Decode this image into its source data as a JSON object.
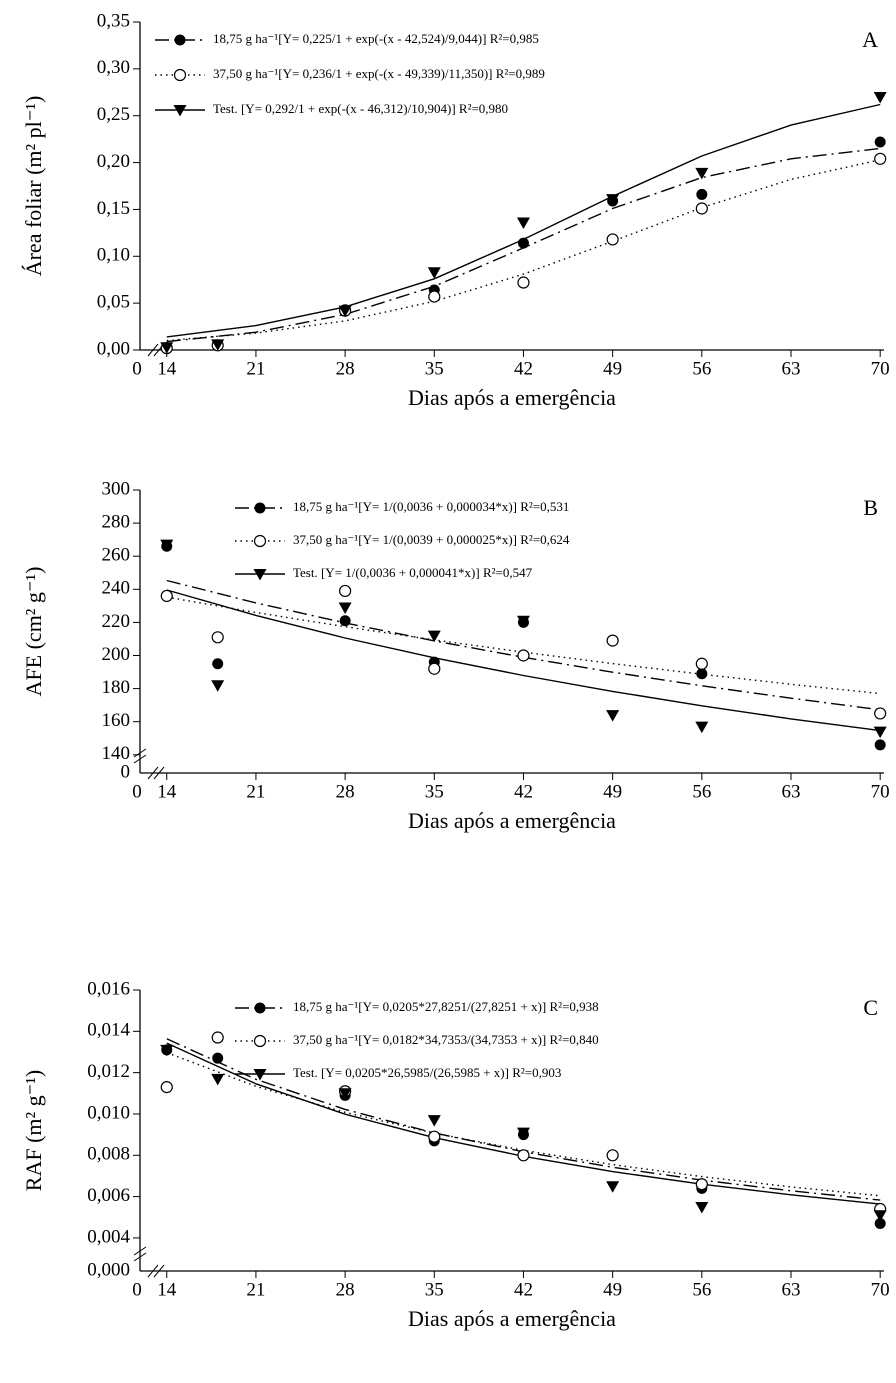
{
  "chart_data": [
    {
      "type": "scatter",
      "panel_label": "A",
      "xlabel": "Dias após a emergência",
      "ylabel": "Área foliar (m² pl⁻¹)",
      "x_break_label": "0",
      "legend": "upper left",
      "x": [
        14,
        18,
        28,
        35,
        42,
        49,
        56,
        70
      ],
      "fit_x": [
        14,
        21,
        28,
        35,
        42,
        49,
        56,
        63,
        70
      ],
      "xlim": [
        11.9,
        70.3
      ],
      "xticks": [
        14,
        21,
        28,
        35,
        42,
        49,
        56,
        63,
        70
      ],
      "ylim": [
        0,
        0.35
      ],
      "yticks": [
        {
          "value": 0,
          "label": "0,00"
        },
        {
          "value": 0.05,
          "label": "0,05"
        },
        {
          "value": 0.1,
          "label": "0,10"
        },
        {
          "value": 0.15,
          "label": "0,15"
        },
        {
          "value": 0.2,
          "label": "0,20"
        },
        {
          "value": 0.25,
          "label": "0,25"
        },
        {
          "value": 0.3,
          "label": "0,30"
        },
        {
          "value": 0.35,
          "label": "0,35"
        }
      ],
      "series": [
        {
          "name": "18,75 g ha⁻¹[Y= 0,225/1 + exp(-(x - 42,524)/9,044)] R²=0,985",
          "color": "#000000",
          "marker": "filled-circle",
          "dash": "14 5 2 5",
          "values": [
            0.002,
            0.005,
            0.043,
            0.064,
            0.114,
            0.159,
            0.166,
            0.222
          ],
          "fit": [
            0.009,
            0.019,
            0.038,
            0.068,
            0.109,
            0.151,
            0.184,
            0.204,
            0.215
          ]
        },
        {
          "name": "37,50 g ha⁻¹[Y= 0,236/1 + exp(-(x - 49,339)/11,350)] R²=0,989",
          "color": "#000000",
          "marker": "open-circle",
          "dash": "1.5 4",
          "values": [
            0.002,
            0.005,
            0.042,
            0.057,
            0.072,
            0.118,
            0.151,
            0.204
          ],
          "fit": [
            0.01,
            0.018,
            0.031,
            0.052,
            0.081,
            0.116,
            0.152,
            0.182,
            0.203
          ]
        },
        {
          "name": "Test. [Y= 0,292/1 + exp(-(x - 46,312)/10,904)] R²=0,980",
          "color": "#000000",
          "marker": "down-triangle",
          "dash": "none",
          "values": [
            0.003,
            0.006,
            0.042,
            0.083,
            0.136,
            0.161,
            0.189,
            0.27
          ],
          "fit": [
            0.014,
            0.026,
            0.046,
            0.076,
            0.118,
            0.164,
            0.207,
            0.24,
            0.262
          ]
        }
      ]
    },
    {
      "type": "scatter",
      "panel_label": "B",
      "xlabel": "Dias após a emergência",
      "ylabel": "AFE (cm² g⁻¹)",
      "x_break_label": "0",
      "y_break_label": "0",
      "legend": "upper center",
      "x": [
        14,
        18,
        28,
        35,
        42,
        49,
        56,
        70
      ],
      "fit_x": [
        14,
        21,
        28,
        35,
        42,
        49,
        56,
        63,
        70
      ],
      "xlim": [
        11.9,
        70.3
      ],
      "xticks": [
        14,
        21,
        28,
        35,
        42,
        49,
        56,
        63,
        70
      ],
      "ylim": [
        129,
        300
      ],
      "yticks": [
        140,
        160,
        180,
        200,
        220,
        240,
        260,
        280,
        300
      ],
      "series": [
        {
          "name": "18,75 g ha⁻¹[Y= 1/(0,0036 + 0,000034*x)] R²=0,531",
          "color": "#000000",
          "marker": "filled-circle",
          "dash": "14 5 2 5",
          "values": [
            266,
            195,
            221,
            196,
            220,
            209,
            189,
            146
          ],
          "fit": [
            245.3,
            231.8,
            219.7,
            208.8,
            198.9,
            189.9,
            181.7,
            174.2,
            167.2
          ]
        },
        {
          "name": "37,50 g ha⁻¹[Y= 1/(0,0039 + 0,000025*x)] R²=0,624",
          "color": "#000000",
          "marker": "open-circle",
          "dash": "1.5 4",
          "values": [
            236,
            211,
            239,
            192,
            200,
            209,
            195,
            165
          ],
          "fit": [
            235.3,
            226.0,
            217.4,
            209.4,
            202.0,
            195.1,
            188.7,
            182.6,
            177.0
          ]
        },
        {
          "name": "Test. [Y= 1/(0,0036 + 0,000041*x)] R²=0,547",
          "color": "#000000",
          "marker": "down-triangle",
          "dash": "none",
          "values": [
            267,
            182,
            229,
            212,
            221,
            164,
            157,
            154
          ],
          "fit": [
            239.6,
            224.2,
            210.6,
            198.6,
            187.9,
            178.3,
            169.6,
            161.7,
            154.6
          ]
        }
      ]
    },
    {
      "type": "scatter",
      "panel_label": "C",
      "xlabel": "Dias após a emergência",
      "ylabel": "RAF (m² g⁻¹)",
      "x_break_label": "0",
      "y_break_label": "0,000",
      "legend": "upper center",
      "x": [
        14,
        18,
        28,
        35,
        42,
        49,
        56,
        70
      ],
      "fit_x": [
        14,
        21,
        28,
        35,
        42,
        49,
        56,
        63,
        70
      ],
      "xlim": [
        11.9,
        70.3
      ],
      "xticks": [
        14,
        21,
        28,
        35,
        42,
        49,
        56,
        63,
        70
      ],
      "ylim": [
        0.0024,
        0.016
      ],
      "yticks": [
        {
          "value": 0.004,
          "label": "0,004"
        },
        {
          "value": 0.006,
          "label": "0,006"
        },
        {
          "value": 0.008,
          "label": "0,008"
        },
        {
          "value": 0.01,
          "label": "0,010"
        },
        {
          "value": 0.012,
          "label": "0,012"
        },
        {
          "value": 0.014,
          "label": "0,014"
        },
        {
          "value": 0.016,
          "label": "0,016"
        }
      ],
      "series": [
        {
          "name": "18,75 g ha⁻¹[Y= 0,0205*27,8251/(27,8251 + x)] R²=0,938",
          "color": "#000000",
          "marker": "filled-circle",
          "dash": "14 5 2 5",
          "values": [
            0.0131,
            0.0127,
            0.0109,
            0.0087,
            0.009,
            0.008,
            0.0064,
            0.0047
          ],
          "fit": [
            0.01364,
            0.01168,
            0.01022,
            0.00908,
            0.00817,
            0.00742,
            0.0068,
            0.00628,
            0.00583
          ]
        },
        {
          "name": "37,50 g ha⁻¹[Y= 0,0182*34,7353/(34,7353 + x)] R²=0,840",
          "color": "#000000",
          "marker": "open-circle",
          "dash": "1.5 4",
          "values": [
            0.0113,
            0.0137,
            0.0111,
            0.0089,
            0.008,
            0.008,
            0.0066,
            0.0054
          ],
          "fit": [
            0.01297,
            0.01134,
            0.01008,
            0.00907,
            0.00824,
            0.00755,
            0.00697,
            0.00647,
            0.00604
          ]
        },
        {
          "name": "Test. [Y= 0,0205*26,5985/(26,5985 + x)] R²=0,903",
          "color": "#000000",
          "marker": "down-triangle",
          "dash": "none",
          "values": [
            0.0131,
            0.0117,
            0.011,
            0.0097,
            0.0091,
            0.0065,
            0.0055,
            0.0051
          ],
          "fit": [
            0.01343,
            0.01146,
            0.00999,
            0.00885,
            0.00795,
            0.00721,
            0.0066,
            0.00609,
            0.00564
          ]
        }
      ]
    }
  ]
}
